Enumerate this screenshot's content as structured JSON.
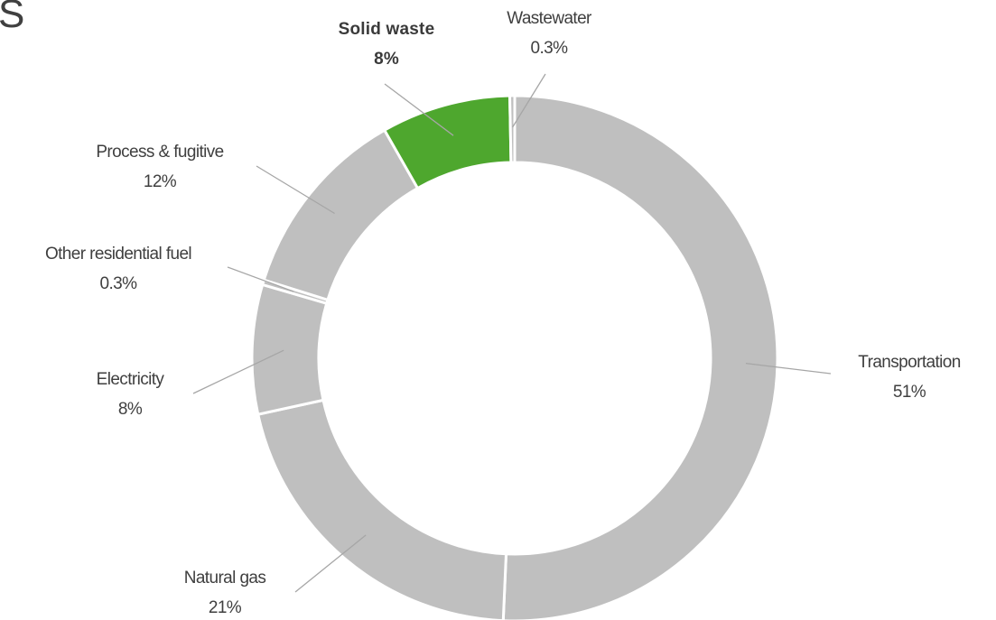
{
  "header": {
    "corner_text": "S"
  },
  "colors": {
    "highlight": "#4ea72e",
    "default_slice": "#bfbfbf",
    "leader": "#a6a6a6",
    "background": "#ffffff"
  },
  "chart_data": {
    "type": "pie",
    "variant": "donut",
    "start_angle_deg": 0,
    "direction": "clockwise",
    "legend": "none",
    "categories": [
      "Transportation",
      "Natural gas",
      "Electricity",
      "Other residential fuel",
      "Process & fugitive",
      "Solid waste",
      "Wastewater"
    ],
    "values": [
      51,
      21,
      8,
      0.3,
      12,
      8,
      0.3
    ],
    "value_labels": [
      "51%",
      "21%",
      "8%",
      "0.3%",
      "12%",
      "8%",
      "0.3%"
    ],
    "highlighted": [
      "Solid waste"
    ],
    "slice_colors": [
      "#bfbfbf",
      "#bfbfbf",
      "#bfbfbf",
      "#bfbfbf",
      "#bfbfbf",
      "#4ea72e",
      "#bfbfbf"
    ]
  }
}
